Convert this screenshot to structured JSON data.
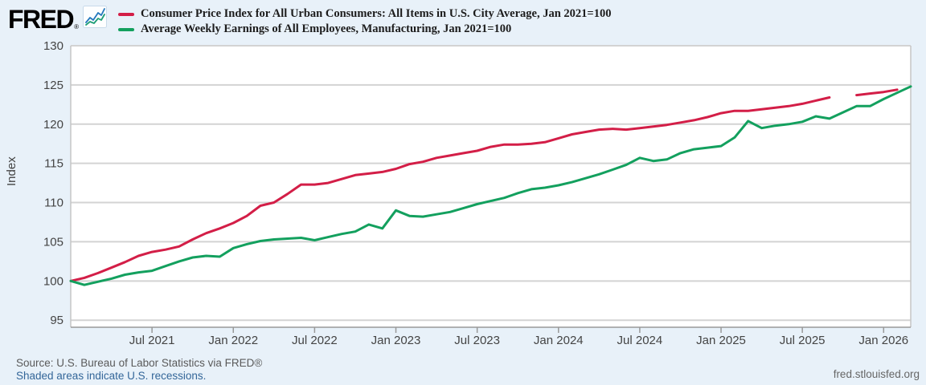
{
  "header": {
    "logo_text": "FRED",
    "registered_mark": "®",
    "legend": [
      {
        "series": "cpi",
        "label": "Consumer Price Index for All Urban Consumers: All Items in U.S. City Average, Jan 2021=100",
        "color": "#d31e47"
      },
      {
        "series": "earnings",
        "label": "Average Weekly Earnings of All Employees, Manufacturing, Jan 2021=100",
        "color": "#13a05e"
      }
    ]
  },
  "chart_data": {
    "type": "line",
    "title": "",
    "xlabel": "",
    "ylabel": "Index",
    "ylim": [
      94.1,
      130
    ],
    "yticks": [
      95,
      100,
      105,
      110,
      115,
      120,
      125,
      130
    ],
    "grid": "horizontal",
    "legend_position": "top-left",
    "months": [
      "2021-01",
      "2021-02",
      "2021-03",
      "2021-04",
      "2021-05",
      "2021-06",
      "2021-07",
      "2021-08",
      "2021-09",
      "2021-10",
      "2021-11",
      "2021-12",
      "2022-01",
      "2022-02",
      "2022-03",
      "2022-04",
      "2022-05",
      "2022-06",
      "2022-07",
      "2022-08",
      "2022-09",
      "2022-10",
      "2022-11",
      "2022-12",
      "2023-01",
      "2023-02",
      "2023-03",
      "2023-04",
      "2023-05",
      "2023-06",
      "2023-07",
      "2023-08",
      "2023-09",
      "2023-10",
      "2023-11",
      "2023-12",
      "2024-01",
      "2024-02",
      "2024-03",
      "2024-04",
      "2024-05",
      "2024-06",
      "2024-07",
      "2024-08",
      "2024-09",
      "2024-10",
      "2024-11",
      "2024-12",
      "2025-01",
      "2025-02",
      "2025-03",
      "2025-04",
      "2025-05",
      "2025-06",
      "2025-07",
      "2025-08",
      "2025-09",
      "2025-10",
      "2025-11",
      "2025-12",
      "2026-01",
      "2026-02",
      "2026-03"
    ],
    "x_ticks": [
      {
        "month_index": 6,
        "label": "Jul 2021"
      },
      {
        "month_index": 12,
        "label": "Jan 2022"
      },
      {
        "month_index": 18,
        "label": "Jul 2022"
      },
      {
        "month_index": 24,
        "label": "Jan 2023"
      },
      {
        "month_index": 30,
        "label": "Jul 2023"
      },
      {
        "month_index": 36,
        "label": "Jan 2024"
      },
      {
        "month_index": 42,
        "label": "Jul 2024"
      },
      {
        "month_index": 48,
        "label": "Jan 2025"
      },
      {
        "month_index": 54,
        "label": "Jul 2025"
      },
      {
        "month_index": 60,
        "label": "Jan 2026"
      }
    ],
    "series": [
      {
        "name": "Consumer Price Index for All Urban Consumers: All Items in U.S. City Average, Jan 2021=100",
        "color": "#d31e47",
        "note": "gap at 2025-10 (value not published)",
        "values": [
          100.0,
          100.4,
          101.0,
          101.7,
          102.4,
          103.2,
          103.7,
          104.0,
          104.4,
          105.3,
          106.1,
          106.7,
          107.4,
          108.3,
          109.6,
          110.0,
          111.1,
          112.3,
          112.3,
          112.5,
          113.0,
          113.5,
          113.7,
          113.9,
          114.3,
          114.9,
          115.2,
          115.7,
          116.0,
          116.3,
          116.6,
          117.1,
          117.4,
          117.4,
          117.5,
          117.7,
          118.2,
          118.7,
          119.0,
          119.3,
          119.4,
          119.3,
          119.5,
          119.7,
          119.9,
          120.2,
          120.5,
          120.9,
          121.4,
          121.7,
          121.7,
          121.9,
          122.1,
          122.3,
          122.6,
          123.0,
          123.4,
          null,
          123.7,
          123.9,
          124.1,
          124.4,
          null
        ]
      },
      {
        "name": "Average Weekly Earnings of All Employees, Manufacturing, Jan 2021=100",
        "color": "#13a05e",
        "values": [
          100.0,
          99.5,
          99.9,
          100.3,
          100.8,
          101.1,
          101.3,
          101.9,
          102.5,
          103.0,
          103.2,
          103.1,
          104.2,
          104.7,
          105.1,
          105.3,
          105.4,
          105.5,
          105.2,
          105.6,
          106.0,
          106.3,
          107.2,
          106.7,
          109.0,
          108.3,
          108.2,
          108.5,
          108.8,
          109.3,
          109.8,
          110.2,
          110.6,
          111.2,
          111.7,
          111.9,
          112.2,
          112.6,
          113.1,
          113.6,
          114.2,
          114.8,
          115.7,
          115.3,
          115.5,
          116.3,
          116.8,
          117.0,
          117.2,
          118.3,
          120.4,
          119.5,
          119.8,
          120.0,
          120.3,
          121.0,
          120.7,
          121.5,
          122.3,
          122.3,
          123.2,
          124.0,
          124.8
        ]
      }
    ]
  },
  "footer": {
    "source": "Source: U.S. Bureau of Labor Statistics via FRED®",
    "recessions_note": "Shaded areas indicate U.S. recessions.",
    "site": "fred.stlouisfed.org"
  },
  "colors": {
    "background": "#e8f1f9",
    "plot_background": "#ffffff",
    "gridline": "#d3d3d3",
    "frame": "#c6c6c6",
    "axis_line": "#999999",
    "tick_text": "#444444",
    "cpi_line": "#d31e47",
    "earnings_line": "#13a05e"
  }
}
